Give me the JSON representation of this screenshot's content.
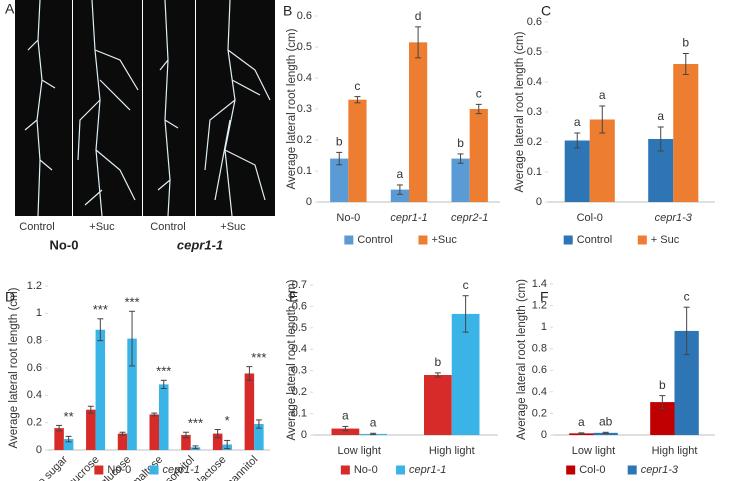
{
  "panel_a": {
    "panel": "A",
    "labels": [
      "Control",
      "+Suc",
      "Control",
      "+Suc"
    ],
    "genotypes": [
      "No-0",
      "cepr1-1"
    ]
  },
  "chart_data": [
    {
      "type": "bar",
      "panel": "B",
      "ylabel": "Average lateral root length (cm)",
      "categories": [
        "No-0",
        "cepr1-1",
        "cepr2-1"
      ],
      "series": [
        {
          "name": "Control",
          "color": "#5b9bd5",
          "values": [
            0.14,
            0.04,
            0.14
          ],
          "errors": [
            0.02,
            0.015,
            0.015
          ],
          "letters": [
            "b",
            "a",
            "b"
          ]
        },
        {
          "name": "+Suc",
          "color": "#ed7d31",
          "values": [
            0.33,
            0.515,
            0.3
          ],
          "errors": [
            0.01,
            0.05,
            0.015
          ],
          "letters": [
            "c",
            "d",
            "c"
          ]
        }
      ],
      "ylim": [
        0,
        0.6
      ],
      "yticks": [
        0,
        0.1,
        0.2,
        0.3,
        0.4,
        0.5,
        0.6
      ]
    },
    {
      "type": "bar",
      "panel": "C",
      "ylabel": "Average lateral root length (cm)",
      "categories": [
        "Col-0",
        "cepr1-3"
      ],
      "series": [
        {
          "name": "Control",
          "color": "#2e75b6",
          "values": [
            0.205,
            0.21
          ],
          "errors": [
            0.025,
            0.04
          ],
          "letters": [
            "a",
            "a"
          ]
        },
        {
          "name": "+ Suc",
          "color": "#ed7d31",
          "values": [
            0.275,
            0.46
          ],
          "errors": [
            0.045,
            0.035
          ],
          "letters": [
            "a",
            "b"
          ]
        }
      ],
      "ylim": [
        0,
        0.6
      ],
      "yticks": [
        0,
        0.1,
        0.2,
        0.3,
        0.4,
        0.5,
        0.6
      ]
    },
    {
      "type": "bar",
      "panel": "D",
      "ylabel": "Average lateral root length (cm)",
      "categories": [
        "no sugar",
        "sucrose",
        "glucose",
        "maltose",
        "sorbitol",
        "lactose",
        "mannitol"
      ],
      "series": [
        {
          "name": "No-0",
          "color": "#d62b28",
          "values": [
            0.16,
            0.295,
            0.12,
            0.26,
            0.11,
            0.12,
            0.56
          ],
          "errors": [
            0.02,
            0.025,
            0.01,
            0.01,
            0.02,
            0.03,
            0.05
          ]
        },
        {
          "name": "cepr1-1",
          "color": "#3ab4e6",
          "values": [
            0.08,
            0.88,
            0.815,
            0.48,
            0.02,
            0.04,
            0.19
          ],
          "errors": [
            0.02,
            0.08,
            0.2,
            0.03,
            0.01,
            0.03,
            0.03
          ]
        }
      ],
      "significance": [
        "**",
        "***",
        "***",
        "***",
        "***",
        "*",
        "***"
      ],
      "ylim": [
        0,
        1.2
      ],
      "yticks": [
        0,
        0.2,
        0.4,
        0.6,
        0.8,
        1,
        1.2
      ]
    },
    {
      "type": "bar",
      "panel": "E",
      "ylabel": "Average lateral root length (cm)",
      "categories": [
        "Low light",
        "High light"
      ],
      "series": [
        {
          "name": "No-0",
          "color": "#d62b28",
          "values": [
            0.03,
            0.28
          ],
          "errors": [
            0.01,
            0.01
          ],
          "letters": [
            "a",
            "b"
          ]
        },
        {
          "name": "cepr1-1",
          "color": "#3ab4e6",
          "values": [
            0.005,
            0.565
          ],
          "errors": [
            0.003,
            0.085
          ],
          "letters": [
            "a",
            "c"
          ]
        }
      ],
      "ylim": [
        0,
        0.7
      ],
      "yticks": [
        0,
        0.1,
        0.2,
        0.3,
        0.4,
        0.5,
        0.6,
        0.7
      ]
    },
    {
      "type": "bar",
      "panel": "F",
      "ylabel": "Average lateral root length (cm)",
      "categories": [
        "Low light",
        "High light"
      ],
      "series": [
        {
          "name": "Col-0",
          "color": "#c00000",
          "values": [
            0.015,
            0.305
          ],
          "errors": [
            0.005,
            0.06
          ],
          "letters": [
            "a",
            "b"
          ]
        },
        {
          "name": "cepr1-3",
          "color": "#2e75b6",
          "values": [
            0.02,
            0.965
          ],
          "errors": [
            0.005,
            0.22
          ],
          "letters": [
            "ab",
            "c"
          ]
        }
      ],
      "ylim": [
        0,
        1.4
      ],
      "yticks": [
        0,
        0.2,
        0.4,
        0.6,
        0.8,
        1,
        1.2,
        1.4
      ]
    }
  ]
}
